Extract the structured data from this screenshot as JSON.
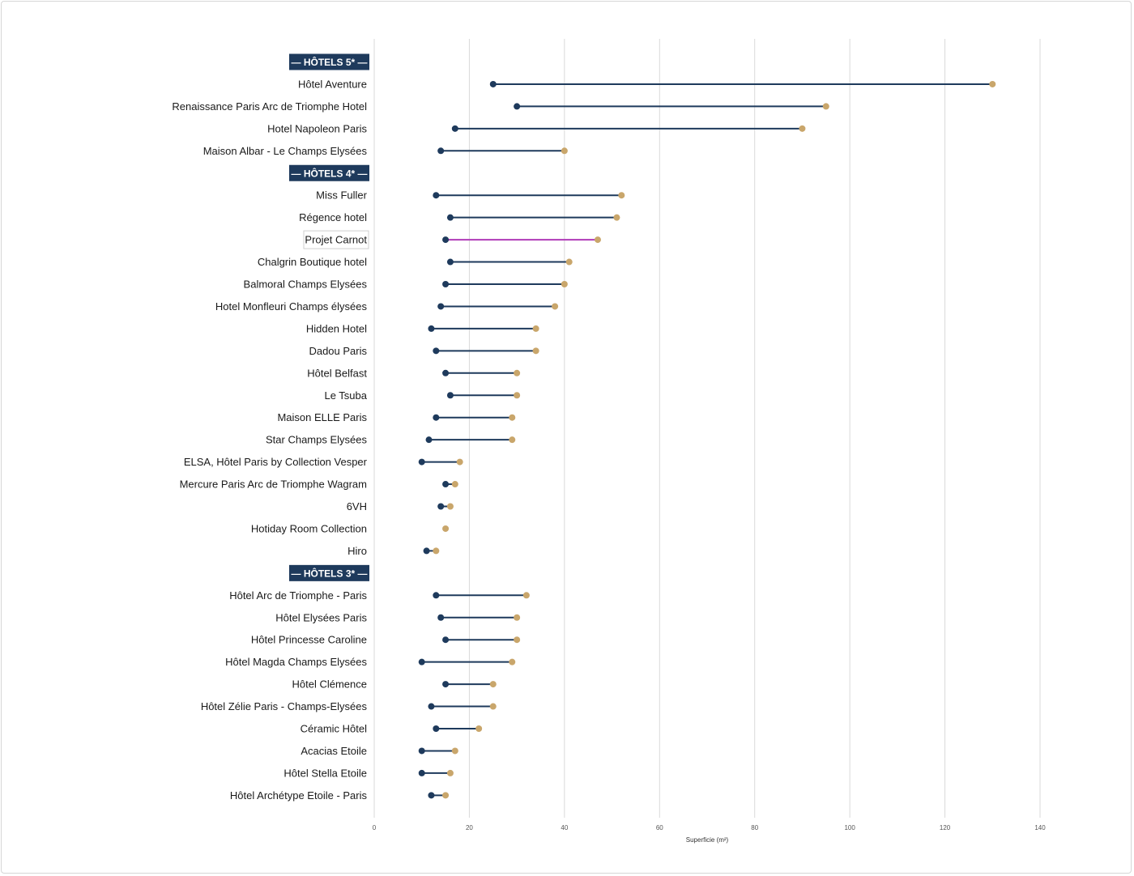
{
  "chart_data": {
    "type": "dumbbell",
    "xlabel": "Superficie (m²)",
    "xlim": [
      0,
      140
    ],
    "xticks": [
      0,
      20,
      40,
      60,
      80,
      100,
      120,
      140
    ],
    "grid": true,
    "colors": {
      "min": "#1e3a5c",
      "max": "#c9a66b",
      "line": "#1e3a5c",
      "highlight_line": "#b03ab8",
      "category_bg": "#1e3a5c"
    },
    "rows": [
      {
        "kind": "category",
        "label": "— HÔTELS 5* —"
      },
      {
        "label": "Hôtel Aventure",
        "min": 25,
        "max": 130
      },
      {
        "label": "Renaissance Paris Arc de Triomphe Hotel",
        "min": 30,
        "max": 95
      },
      {
        "label": "Hotel Napoleon Paris",
        "min": 17,
        "max": 90
      },
      {
        "label": "Maison Albar - Le Champs Elysées",
        "min": 14,
        "max": 40
      },
      {
        "kind": "category",
        "label": "— HÔTELS 4* —"
      },
      {
        "label": "Miss Fuller",
        "min": 13,
        "max": 52
      },
      {
        "label": "Régence hotel",
        "min": 16,
        "max": 51
      },
      {
        "label": "Projet Carnot",
        "min": 15,
        "max": 47,
        "highlight": true
      },
      {
        "label": "Chalgrin Boutique hotel",
        "min": 16,
        "max": 41
      },
      {
        "label": "Balmoral Champs Elysées",
        "min": 15,
        "max": 40
      },
      {
        "label": "Hotel Monfleuri Champs élysées",
        "min": 14,
        "max": 38
      },
      {
        "label": "Hidden Hotel",
        "min": 12,
        "max": 34
      },
      {
        "label": "Dadou Paris",
        "min": 13,
        "max": 34
      },
      {
        "label": "Hôtel Belfast",
        "min": 15,
        "max": 30
      },
      {
        "label": "Le Tsuba",
        "min": 16,
        "max": 30
      },
      {
        "label": "Maison ELLE Paris",
        "min": 13,
        "max": 29
      },
      {
        "label": "Star Champs Elysées",
        "min": 11.5,
        "max": 29
      },
      {
        "label": "ELSA, Hôtel Paris by Collection Vesper",
        "min": 10,
        "max": 18
      },
      {
        "label": "Mercure Paris Arc de Triomphe Wagram",
        "min": 15,
        "max": 17
      },
      {
        "label": "6VH",
        "min": 14,
        "max": 16
      },
      {
        "label": "Hotiday Room Collection",
        "min": 15,
        "max": 15
      },
      {
        "label": "Hiro",
        "min": 11,
        "max": 13
      },
      {
        "kind": "category",
        "label": "— HÔTELS 3* —"
      },
      {
        "label": "Hôtel Arc de Triomphe - Paris",
        "min": 13,
        "max": 32
      },
      {
        "label": "Hôtel Elysées Paris",
        "min": 14,
        "max": 30
      },
      {
        "label": "Hôtel Princesse Caroline",
        "min": 15,
        "max": 30
      },
      {
        "label": "Hôtel Magda Champs Elysées",
        "min": 10,
        "max": 29
      },
      {
        "label": "Hôtel Clémence",
        "min": 15,
        "max": 25
      },
      {
        "label": "Hôtel Zélie Paris - Champs-Elysées",
        "min": 12,
        "max": 25
      },
      {
        "label": "Céramic Hôtel",
        "min": 13,
        "max": 22
      },
      {
        "label": "Acacias Etoile",
        "min": 10,
        "max": 17
      },
      {
        "label": "Hôtel Stella Etoile",
        "min": 10,
        "max": 16
      },
      {
        "label": "Hôtel Archétype Etoile - Paris",
        "min": 12,
        "max": 15
      }
    ]
  }
}
